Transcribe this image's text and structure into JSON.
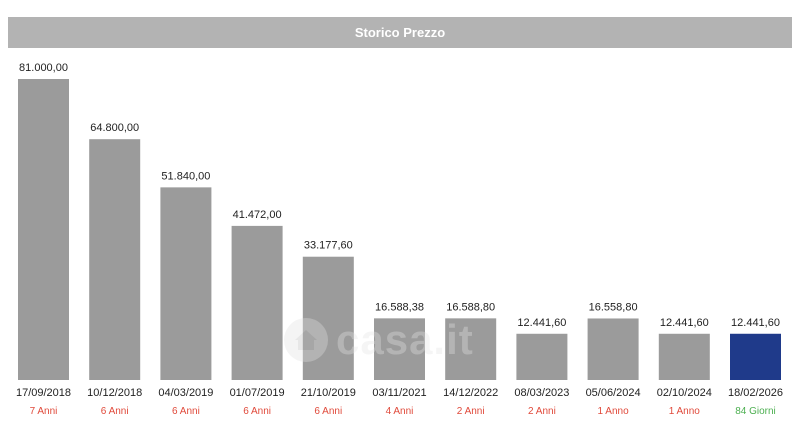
{
  "header": {
    "title": "Storico Prezzo"
  },
  "watermark": {
    "text": "casa.it"
  },
  "colors": {
    "bar": "#9b9b9b",
    "current_bar": "#1f3a8a",
    "duration_red": "#e0493a",
    "duration_green": "#4caf50"
  },
  "chart_data": {
    "type": "bar",
    "title": "Storico Prezzo",
    "categories": [
      "17/09/2018",
      "10/12/2018",
      "04/03/2019",
      "01/07/2019",
      "21/10/2019",
      "03/11/2021",
      "14/12/2022",
      "08/03/2023",
      "05/06/2024",
      "02/10/2024",
      "18/02/2026"
    ],
    "values": [
      81000.0,
      64800.0,
      51840.0,
      41472.0,
      33177.6,
      16588.38,
      16588.8,
      12441.6,
      16558.8,
      12441.6,
      12441.6
    ],
    "value_labels": [
      "81.000,00",
      "64.800,00",
      "51.840,00",
      "41.472,00",
      "33.177,60",
      "16.588,38",
      "16.588,80",
      "12.441,60",
      "16.558,80",
      "12.441,60",
      "12.441,60"
    ],
    "durations": [
      "7 Anni",
      "6 Anni",
      "6 Anni",
      "6 Anni",
      "6 Anni",
      "4 Anni",
      "2 Anni",
      "2 Anni",
      "1 Anno",
      "1 Anno",
      "84 Giorni"
    ],
    "ylim": [
      0,
      81000
    ],
    "grid": false,
    "highlight_index": 10
  }
}
